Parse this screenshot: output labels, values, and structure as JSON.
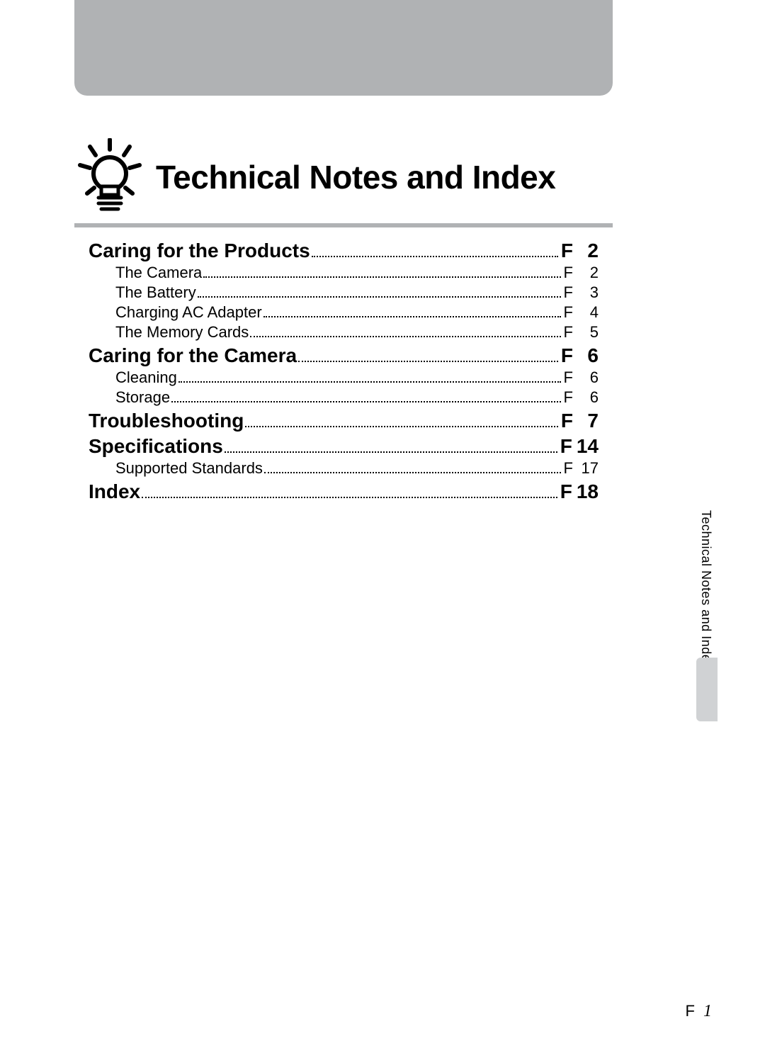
{
  "header": {
    "title": "Technical Notes and Index"
  },
  "toc": {
    "sections": [
      {
        "level": "section",
        "label": "Caring for the Products",
        "prefix": "F",
        "page": "2"
      },
      {
        "level": "sub",
        "label": "The Camera",
        "prefix": "F",
        "page": "2"
      },
      {
        "level": "sub",
        "label": "The Battery",
        "prefix": "F",
        "page": "3"
      },
      {
        "level": "sub",
        "label": "Charging AC Adapter",
        "prefix": "F",
        "page": "4"
      },
      {
        "level": "sub",
        "label": "The Memory Cards",
        "prefix": "F",
        "page": "5"
      },
      {
        "level": "section",
        "label": "Caring for the Camera",
        "prefix": "F",
        "page": "6"
      },
      {
        "level": "sub",
        "label": "Cleaning",
        "prefix": "F",
        "page": "6"
      },
      {
        "level": "sub",
        "label": "Storage",
        "prefix": "F",
        "page": "6"
      },
      {
        "level": "section",
        "label": "Troubleshooting",
        "prefix": "F",
        "page": "7"
      },
      {
        "level": "section",
        "label": "Specifications",
        "prefix": "F",
        "page": "14"
      },
      {
        "level": "sub",
        "label": "Supported Standards",
        "prefix": "F",
        "page": "17"
      },
      {
        "level": "section",
        "label": "Index",
        "prefix": "F",
        "page": "18"
      }
    ]
  },
  "sidebar": {
    "label": "Technical Notes and Index"
  },
  "footer": {
    "prefix": "F",
    "page": "1"
  },
  "colors": {
    "header_box": "#b0b2b4",
    "underline": "#b0b2b4",
    "side_tab": "#d0d2d4",
    "text": "#000000",
    "background": "#ffffff"
  },
  "typography": {
    "title_fontsize": 46,
    "section_fontsize": 28,
    "sub_fontsize": 22,
    "side_fontsize": 18,
    "footer_fontsize": 22
  }
}
